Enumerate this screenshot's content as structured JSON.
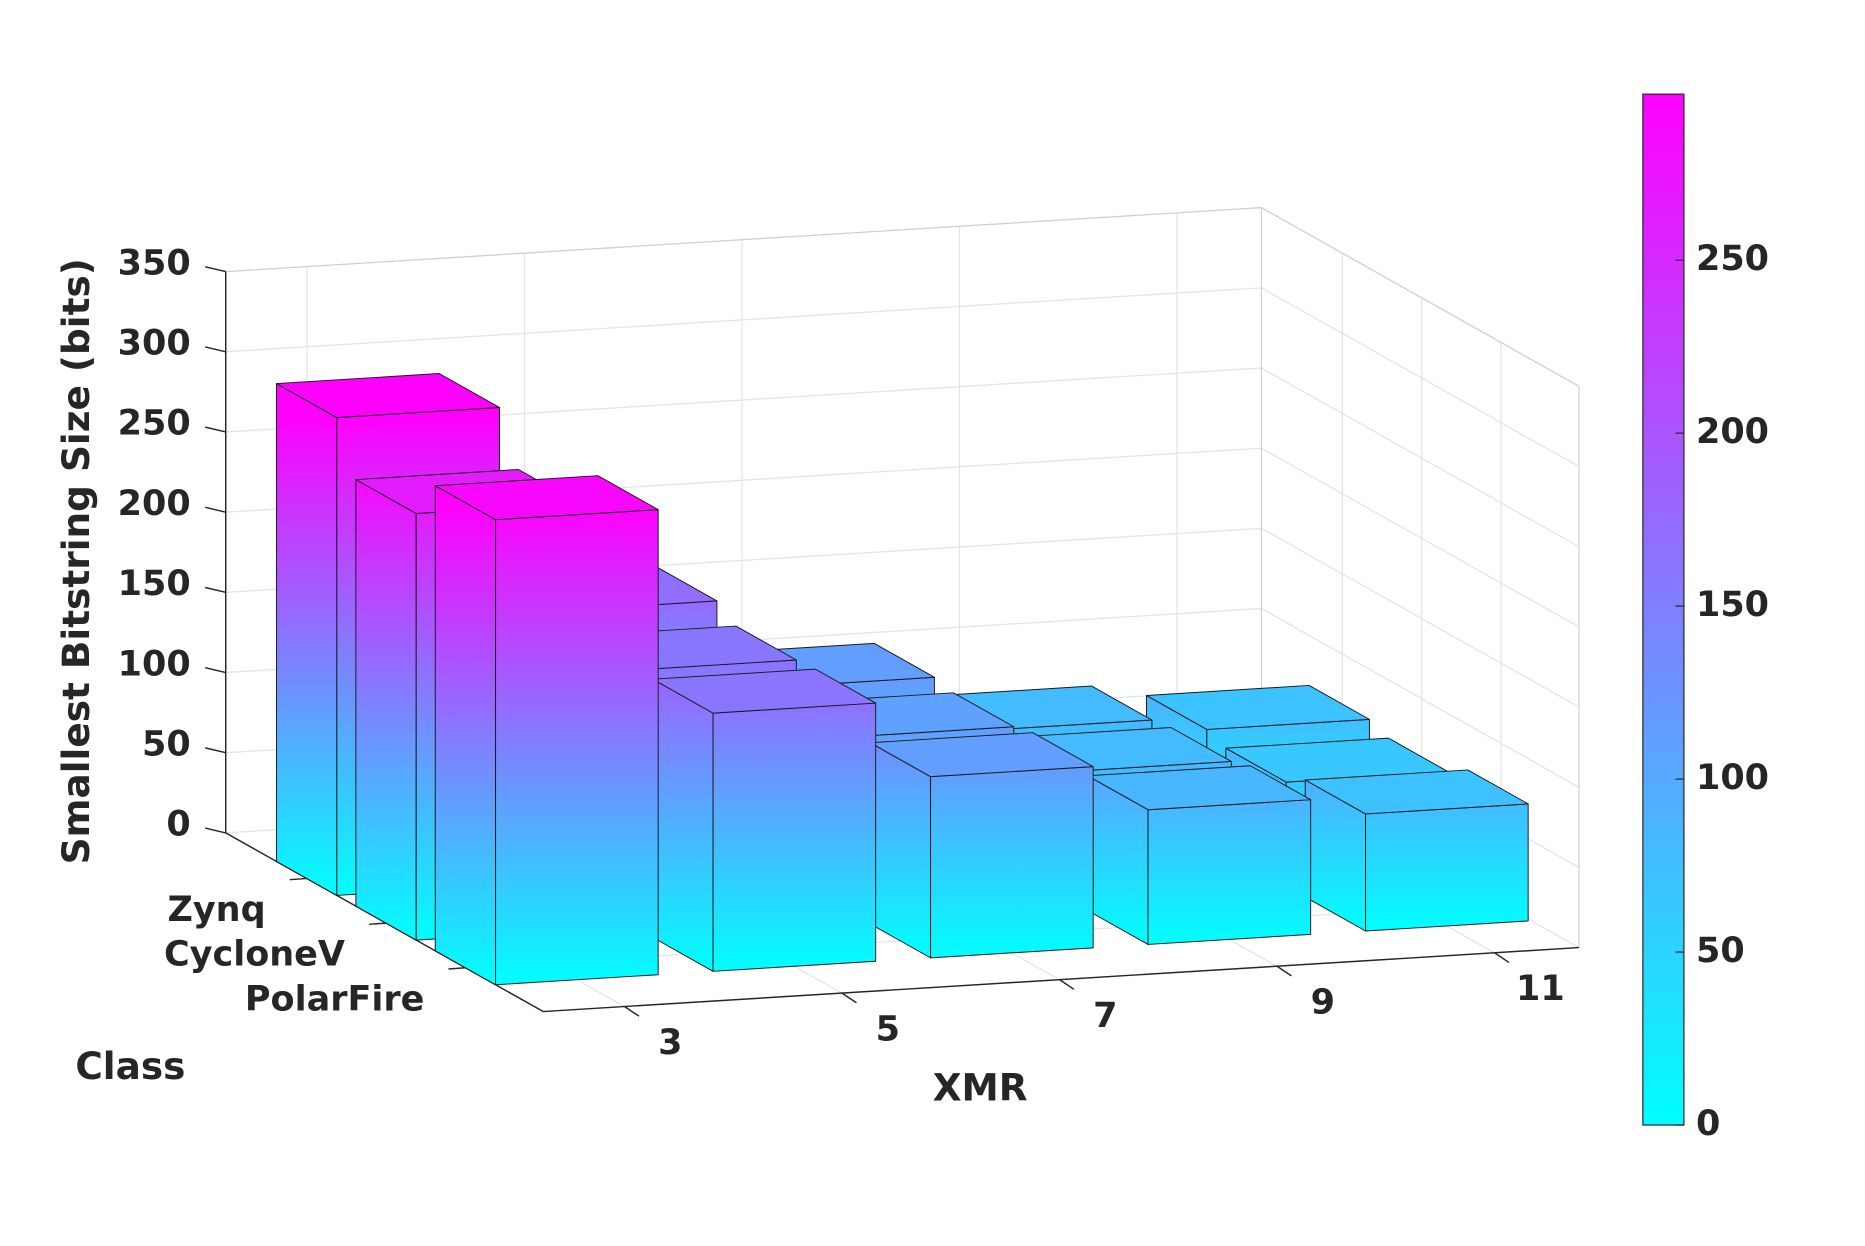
{
  "chart_data": {
    "type": "bar3d",
    "xlabel": "XMR",
    "ylabel": "Class",
    "zlabel": "Smallest Bitstring Size (bits)",
    "categories": [
      "3",
      "5",
      "7",
      "9",
      "11"
    ],
    "series": [
      {
        "name": "Zynq",
        "values": [
          298,
          169,
          113,
          78,
          70
        ]
      },
      {
        "name": "CycloneV",
        "values": [
          266,
          160,
          110,
          80,
          65
        ]
      },
      {
        "name": "PolarFire",
        "values": [
          290,
          161,
          113,
          84,
          73
        ]
      }
    ],
    "zlim": [
      0,
      350
    ],
    "zticks": [
      0,
      50,
      100,
      150,
      200,
      250,
      300,
      350
    ],
    "grid": true,
    "colormap": "cool",
    "colorbar": {
      "clim": [
        0,
        298
      ],
      "ticks": [
        0,
        50,
        100,
        150,
        200,
        250
      ]
    }
  }
}
